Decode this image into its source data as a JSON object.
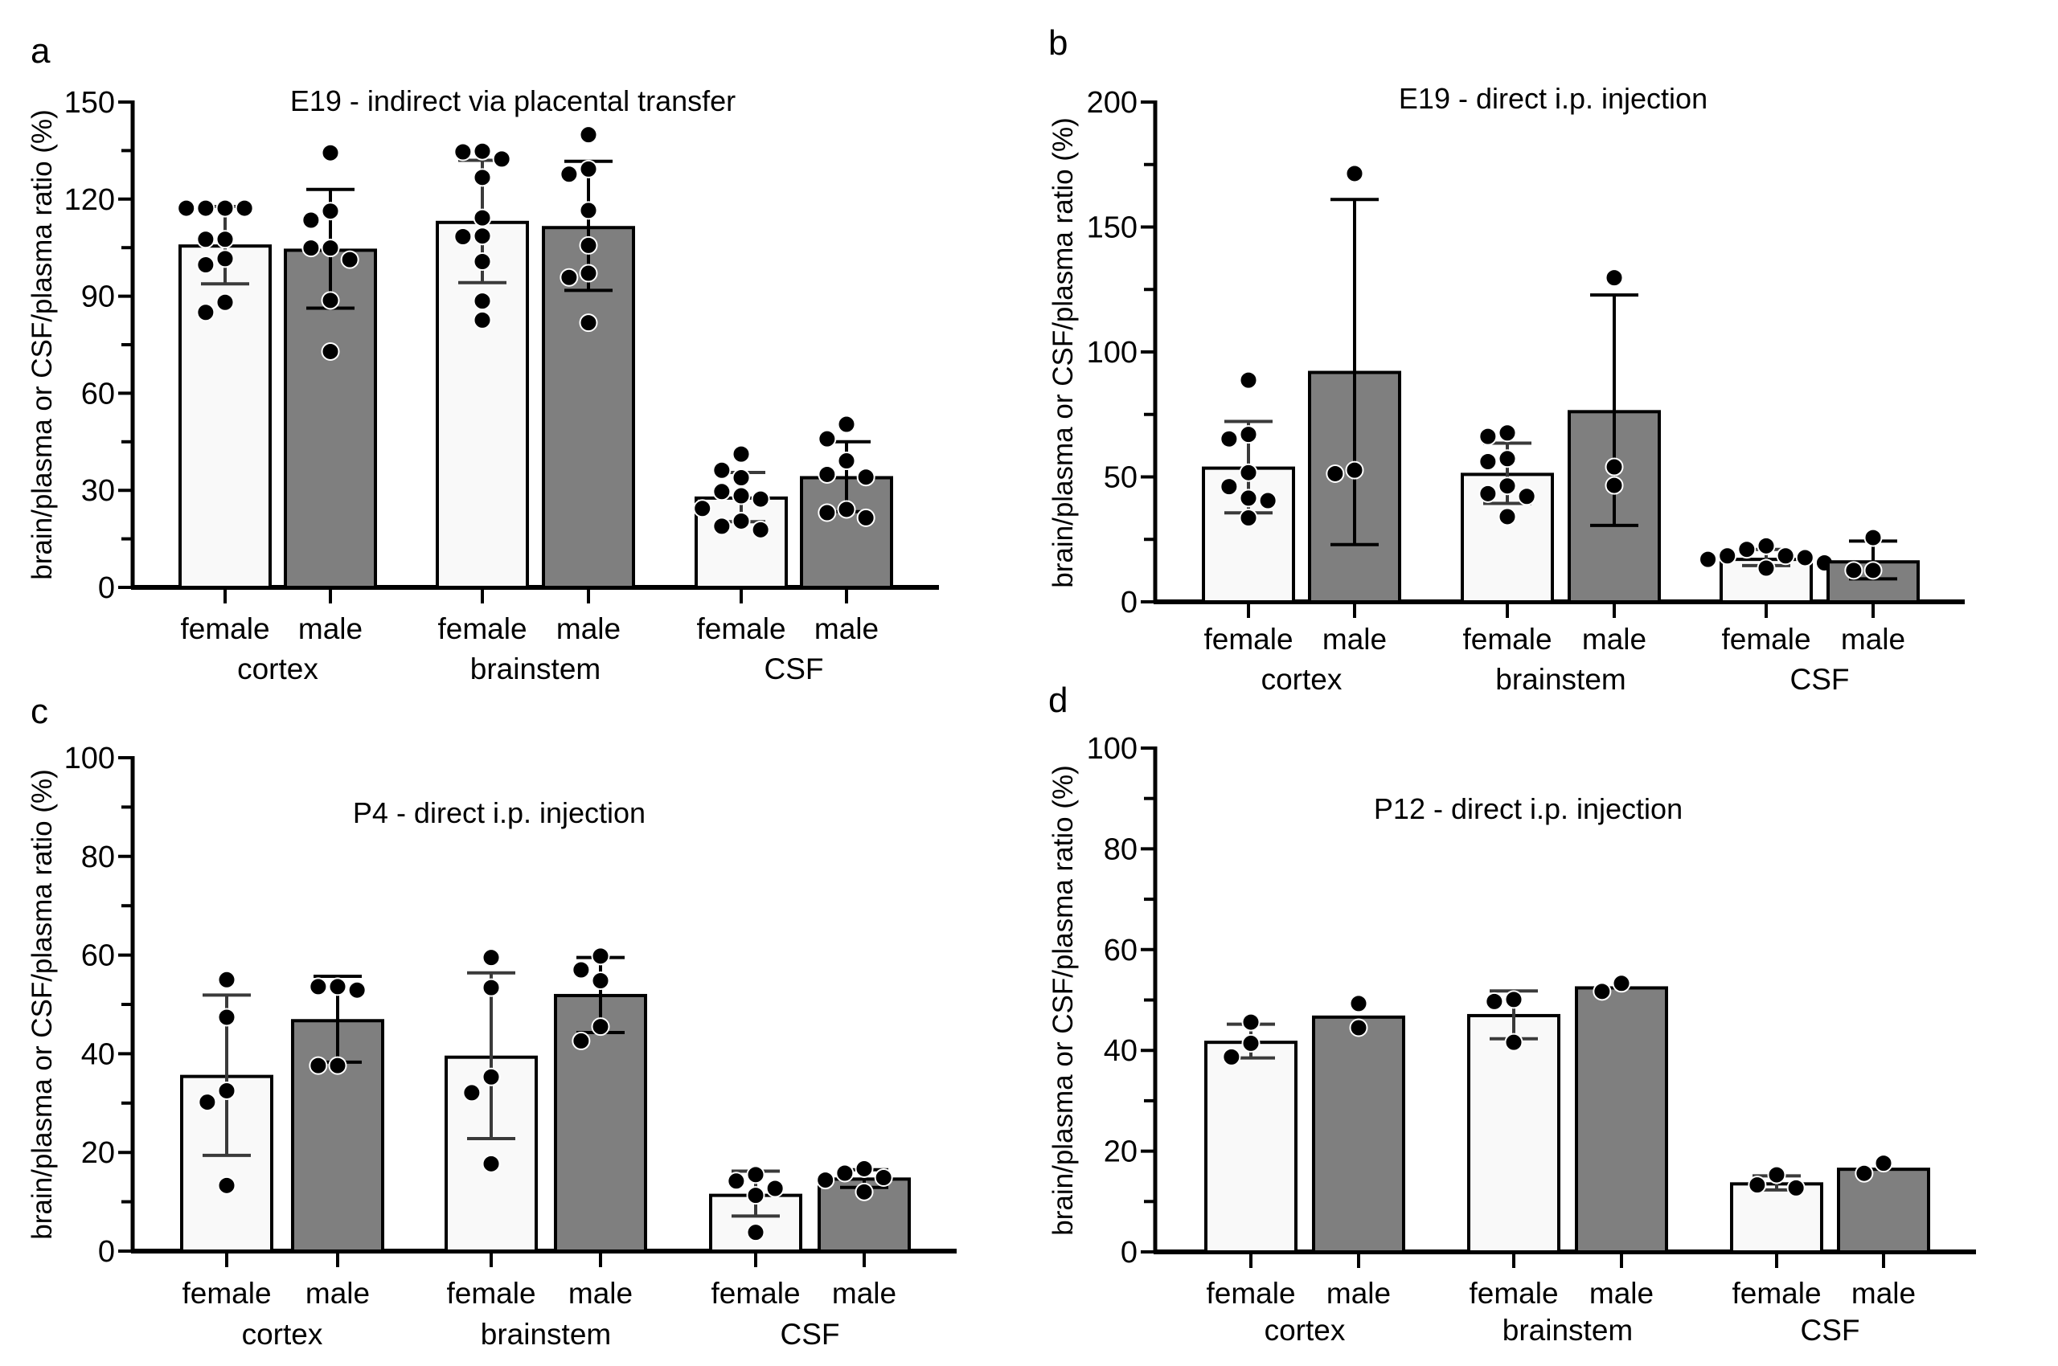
{
  "figure": {
    "colors": {
      "female_bar": "#f9f9f9",
      "male_bar": "#7f7f7f",
      "outline": "#000000",
      "dot": "#000000",
      "dot_edge": "#ffffff",
      "errorbar_female": "#3a3a3a",
      "errorbar_male": "#000000"
    }
  },
  "chart_data": [
    {
      "id": "a",
      "panel_letter": "a",
      "type": "bar",
      "title": "E19 - indirect via placental transfer",
      "ylabel": "brain/plasma or CSF/plasma ratio (%)",
      "xlabel": "",
      "ylim": [
        0,
        150
      ],
      "yticks": [
        0,
        30,
        60,
        90,
        120,
        150
      ],
      "yminor_step": 15,
      "grid": false,
      "groups": [
        "cortex",
        "brainstem",
        "CSF"
      ],
      "categories": [
        "female",
        "male"
      ],
      "bars": [
        {
          "group": "cortex",
          "sex": "female",
          "mean": 105.5,
          "sd_upper": 117.7,
          "sd_lower": 93.8,
          "points": [
            117.2,
            117.2,
            117.2,
            117.2,
            107.6,
            107.6,
            101.6,
            99.7,
            88.1,
            85.0
          ]
        },
        {
          "group": "cortex",
          "sex": "male",
          "mean": 104.2,
          "sd_upper": 123.0,
          "sd_lower": 86.3,
          "points": [
            134.3,
            116.3,
            113.5,
            104.9,
            104.9,
            101.3,
            88.7,
            72.9
          ]
        },
        {
          "group": "brainstem",
          "sex": "female",
          "mean": 112.8,
          "sd_upper": 132.0,
          "sd_lower": 94.2,
          "points": [
            134.6,
            134.8,
            132.4,
            126.7,
            114.2,
            108.4,
            108.6,
            100.7,
            88.5,
            82.6
          ]
        },
        {
          "group": "brainstem",
          "sex": "male",
          "mean": 111.2,
          "sd_upper": 131.7,
          "sd_lower": 91.8,
          "points": [
            139.9,
            129.3,
            127.7,
            116.5,
            105.7,
            97.1,
            95.8,
            81.8
          ]
        },
        {
          "group": "CSF",
          "sex": "female",
          "mean": 27.6,
          "sd_upper": 35.5,
          "sd_lower": 20.3,
          "points": [
            41.2,
            36.2,
            33.9,
            29.6,
            28.3,
            27.3,
            24.4,
            20.5,
            18.9,
            17.8
          ]
        },
        {
          "group": "CSF",
          "sex": "male",
          "mean": 33.9,
          "sd_upper": 45.0,
          "sd_lower": 23.4,
          "points": [
            50.4,
            45.9,
            39.1,
            34.9,
            34.1,
            24.1,
            23.1,
            21.5
          ]
        }
      ]
    },
    {
      "id": "b",
      "panel_letter": "b",
      "type": "bar",
      "title": "E19 - direct i.p. injection",
      "ylabel": "brain/plasma or CSF/plasma ratio (%)",
      "xlabel": "",
      "ylim": [
        0,
        200
      ],
      "yticks": [
        0,
        50,
        100,
        150,
        200
      ],
      "yminor_step": 25,
      "grid": false,
      "groups": [
        "cortex",
        "brainstem",
        "CSF"
      ],
      "categories": [
        "female",
        "male"
      ],
      "bars": [
        {
          "group": "cortex",
          "sex": "female",
          "mean": 53.5,
          "sd_upper": 72.2,
          "sd_lower": 35.6,
          "points": [
            88.7,
            67.0,
            65.2,
            51.7,
            46.1,
            41.5,
            40.5,
            33.6
          ]
        },
        {
          "group": "cortex",
          "sex": "male",
          "mean": 91.8,
          "sd_upper": 161.0,
          "sd_lower": 22.9,
          "points": [
            171.4,
            52.7,
            51.3
          ]
        },
        {
          "group": "brainstem",
          "sex": "female",
          "mean": 51.0,
          "sd_upper": 63.5,
          "sd_lower": 39.4,
          "points": [
            67.6,
            66.2,
            57.3,
            56.1,
            46.4,
            43.3,
            42.2,
            34.1
          ]
        },
        {
          "group": "brainstem",
          "sex": "male",
          "mean": 76.1,
          "sd_upper": 122.8,
          "sd_lower": 30.6,
          "points": [
            129.7,
            54.0,
            46.6
          ]
        },
        {
          "group": "CSF",
          "sex": "female",
          "mean": 17.0,
          "sd_upper": 21.0,
          "sd_lower": 14.5,
          "points": [
            22.4,
            21.0,
            18.4,
            18.4,
            17.7,
            17.0,
            15.6,
            13.5
          ]
        },
        {
          "group": "CSF",
          "sex": "male",
          "mean": 16.0,
          "sd_upper": 24.3,
          "sd_lower": 9.2,
          "points": [
            25.7,
            12.6,
            12.6
          ]
        }
      ]
    },
    {
      "id": "c",
      "panel_letter": "c",
      "type": "bar",
      "title": "P4 - direct i.p. injection",
      "ylabel": "brain/plasma or CSF/plasma ratio (%)",
      "xlabel": "",
      "ylim": [
        0,
        100
      ],
      "yticks": [
        0,
        20,
        40,
        60,
        80,
        100
      ],
      "yminor_step": 10,
      "grid": false,
      "groups": [
        "cortex",
        "brainstem",
        "CSF"
      ],
      "categories": [
        "female",
        "male"
      ],
      "bars": [
        {
          "group": "cortex",
          "sex": "female",
          "mean": 35.4,
          "sd_upper": 51.9,
          "sd_lower": 19.4,
          "points": [
            55.0,
            47.4,
            32.5,
            30.2,
            13.3
          ]
        },
        {
          "group": "cortex",
          "sex": "male",
          "mean": 46.7,
          "sd_upper": 55.7,
          "sd_lower": 38.3,
          "points": [
            53.6,
            53.6,
            52.9,
            37.6,
            37.6
          ]
        },
        {
          "group": "brainstem",
          "sex": "female",
          "mean": 39.3,
          "sd_upper": 56.4,
          "sd_lower": 22.8,
          "points": [
            59.5,
            53.4,
            35.3,
            32.1,
            17.7
          ]
        },
        {
          "group": "brainstem",
          "sex": "male",
          "mean": 51.8,
          "sd_upper": 59.5,
          "sd_lower": 44.3,
          "points": [
            59.8,
            57.0,
            54.8,
            45.5,
            42.6
          ]
        },
        {
          "group": "CSF",
          "sex": "female",
          "mean": 11.3,
          "sd_upper": 16.2,
          "sd_lower": 7.1,
          "points": [
            15.5,
            14.2,
            12.7,
            11.3,
            3.8
          ]
        },
        {
          "group": "CSF",
          "sex": "male",
          "mean": 14.6,
          "sd_upper": 16.5,
          "sd_lower": 12.9,
          "points": [
            16.7,
            15.8,
            14.9,
            14.4,
            12.0
          ]
        }
      ]
    },
    {
      "id": "d",
      "panel_letter": "d",
      "type": "bar",
      "title": "P12 - direct i.p. injection",
      "ylabel": "brain/plasma or CSF/plasma ratio (%)",
      "xlabel": "",
      "ylim": [
        0,
        100
      ],
      "yticks": [
        0,
        20,
        40,
        60,
        80,
        100
      ],
      "yminor_step": 10,
      "grid": false,
      "groups": [
        "cortex",
        "brainstem",
        "CSF"
      ],
      "categories": [
        "female",
        "male"
      ],
      "bars": [
        {
          "group": "cortex",
          "sex": "female",
          "mean": 41.6,
          "sd_upper": 45.2,
          "sd_lower": 38.5,
          "points": [
            45.6,
            41.4,
            38.7
          ]
        },
        {
          "group": "cortex",
          "sex": "male",
          "mean": 46.6,
          "sd_upper": null,
          "sd_lower": null,
          "points": [
            49.3,
            44.5
          ]
        },
        {
          "group": "brainstem",
          "sex": "female",
          "mean": 46.9,
          "sd_upper": 51.8,
          "sd_lower": 42.3,
          "points": [
            50.1,
            49.7,
            41.6
          ]
        },
        {
          "group": "brainstem",
          "sex": "male",
          "mean": 52.4,
          "sd_upper": null,
          "sd_lower": null,
          "points": [
            53.3,
            51.7
          ]
        },
        {
          "group": "CSF",
          "sex": "female",
          "mean": 13.5,
          "sd_upper": 15.1,
          "sd_lower": 12.3,
          "points": [
            15.3,
            13.3,
            12.7
          ]
        },
        {
          "group": "CSF",
          "sex": "male",
          "mean": 16.4,
          "sd_upper": null,
          "sd_lower": null,
          "points": [
            17.6,
            15.6
          ]
        }
      ]
    }
  ]
}
